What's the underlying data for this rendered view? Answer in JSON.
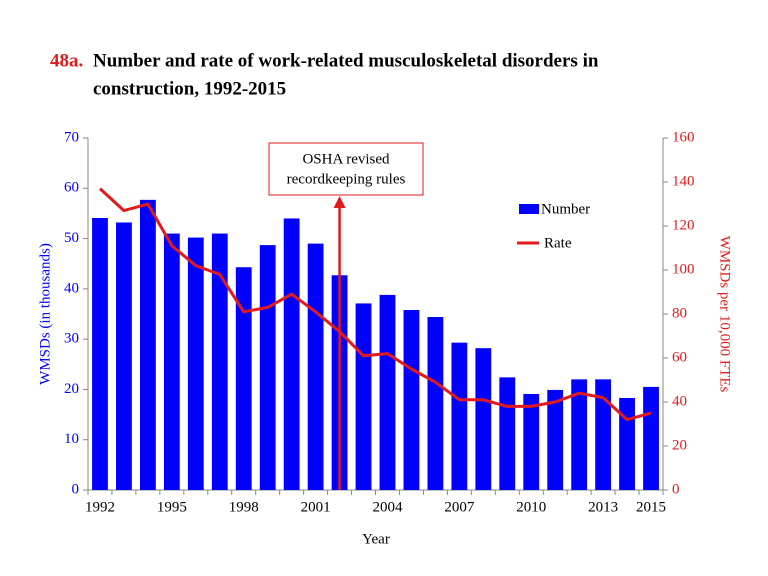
{
  "chart_data": {
    "type": "bar",
    "figure_number": "48a.",
    "title": "Number and rate of work-related musculoskeletal disorders in",
    "title_line2": "construction, 1992-2015",
    "x_label": "Year",
    "y_label": "WMSDs  (in thousands)",
    "y2_label": "WMSDs per 10,000 FTEs",
    "annotation": [
      "OSHA revised",
      "recordkeeping  rules"
    ],
    "categories": [
      "1992",
      null,
      null,
      "1995",
      null,
      null,
      "1998",
      null,
      null,
      "2001",
      null,
      null,
      "2004",
      null,
      null,
      "2007",
      null,
      null,
      "2010",
      null,
      null,
      "2013",
      null,
      "2015"
    ],
    "series": [
      {
        "name": "Number",
        "type": "bar",
        "color": "#0000ff",
        "values": [
          54.1,
          53.2,
          57.7,
          51.0,
          50.2,
          51.0,
          44.3,
          48.7,
          54.0,
          49.0,
          42.7,
          37.1,
          38.8,
          35.8,
          34.4,
          29.3,
          28.2,
          22.4,
          19.1,
          19.9,
          22.0,
          22.0,
          18.3,
          20.5
        ]
      },
      {
        "name": "Rate",
        "type": "line",
        "axis": "y2",
        "color": "#e31a1c",
        "values": [
          137,
          127,
          130,
          111,
          102,
          98,
          81,
          83,
          89,
          81,
          72,
          61,
          62,
          55,
          49,
          41,
          41,
          38,
          38,
          40,
          44,
          42,
          32,
          35
        ]
      }
    ],
    "ylim": [
      0,
      70
    ],
    "yticks": [
      0,
      10,
      20,
      30,
      40,
      50,
      60,
      70
    ],
    "y2lim": [
      0,
      160
    ],
    "y2ticks": [
      0,
      20,
      40,
      60,
      80,
      100,
      120,
      140,
      160
    ],
    "grid": false
  }
}
